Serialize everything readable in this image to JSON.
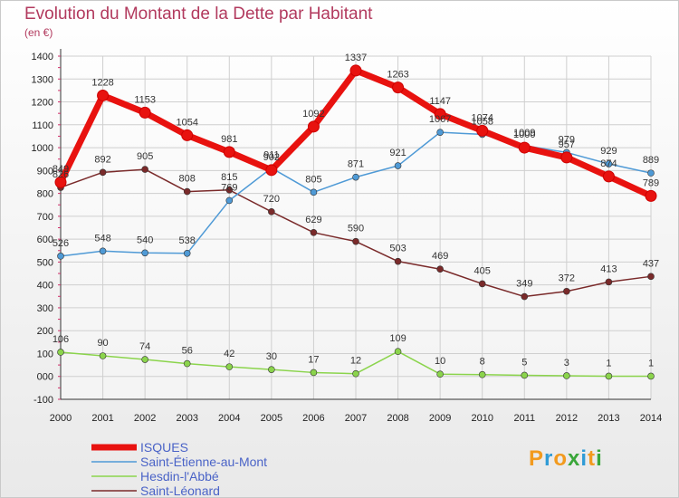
{
  "title": "Evolution du Montant de la Dette par Habitant",
  "subtitle": "(en €)",
  "logo": {
    "letters": [
      "P",
      "r",
      "o",
      "x",
      "i",
      "t",
      "i"
    ],
    "colors": [
      "#f29a1e",
      "#2f9bd6",
      "#f29a1e",
      "#3aa63a",
      "#2f9bd6",
      "#f29a1e",
      "#3aa63a"
    ]
  },
  "chart_data": {
    "type": "line",
    "x": [
      "2000",
      "2001",
      "2002",
      "2003",
      "2004",
      "2005",
      "2006",
      "2007",
      "2008",
      "2009",
      "2010",
      "2011",
      "2012",
      "2013",
      "2014"
    ],
    "ylim": [
      -100,
      1400
    ],
    "yticks": [
      "-100",
      "000",
      "100",
      "200",
      "300",
      "400",
      "500",
      "600",
      "700",
      "800",
      "900",
      "1000",
      "1100",
      "1200",
      "1300",
      "1400"
    ],
    "grid": true,
    "legend_position": "bottom-left",
    "series": [
      {
        "name": "ISQUES",
        "color": "#e8120f",
        "width": 7,
        "marker": 6,
        "values": [
          849,
          1228,
          1153,
          1054,
          981,
          902,
          1092,
          1337,
          1263,
          1147,
          1074,
          1000,
          957,
          874,
          789
        ],
        "labels": [
          "849",
          "1228",
          "1153",
          "1054",
          "981",
          "902",
          "1092",
          "1337",
          "1263",
          "1147",
          "1074",
          "1000",
          "957",
          "874",
          "789"
        ]
      },
      {
        "name": "Saint-Étienne-au-Mont",
        "color": "#4f9ad6",
        "width": 1.5,
        "marker": 3.5,
        "values": [
          526,
          548,
          540,
          538,
          769,
          911,
          805,
          871,
          921,
          1067,
          1058,
          1009,
          979,
          929,
          889
        ],
        "labels": [
          "526",
          "548",
          "540",
          "538",
          "769",
          "911",
          "805",
          "871",
          "921",
          "1067",
          "1058",
          "1009",
          "979",
          "929",
          "889"
        ]
      },
      {
        "name": "Hesdin-l'Abbé",
        "color": "#8bd44c",
        "width": 1.5,
        "marker": 3.5,
        "values": [
          106,
          90,
          74,
          56,
          42,
          30,
          17,
          12,
          109,
          10,
          8,
          5,
          3,
          1,
          1
        ],
        "labels": [
          "106",
          "90",
          "74",
          "56",
          "42",
          "30",
          "17",
          "12",
          "109",
          "10",
          "8",
          "5",
          "3",
          "1",
          "1"
        ]
      },
      {
        "name": "Saint-Léonard",
        "color": "#7a2a2a",
        "width": 1.5,
        "marker": 3.5,
        "values": [
          826,
          892,
          905,
          808,
          815,
          720,
          629,
          590,
          503,
          469,
          405,
          349,
          372,
          413,
          437
        ],
        "labels": [
          "826",
          "892",
          "905",
          "808",
          "815",
          "720",
          "629",
          "590",
          "503",
          "469",
          "405",
          "349",
          "372",
          "413",
          "437"
        ]
      }
    ]
  }
}
